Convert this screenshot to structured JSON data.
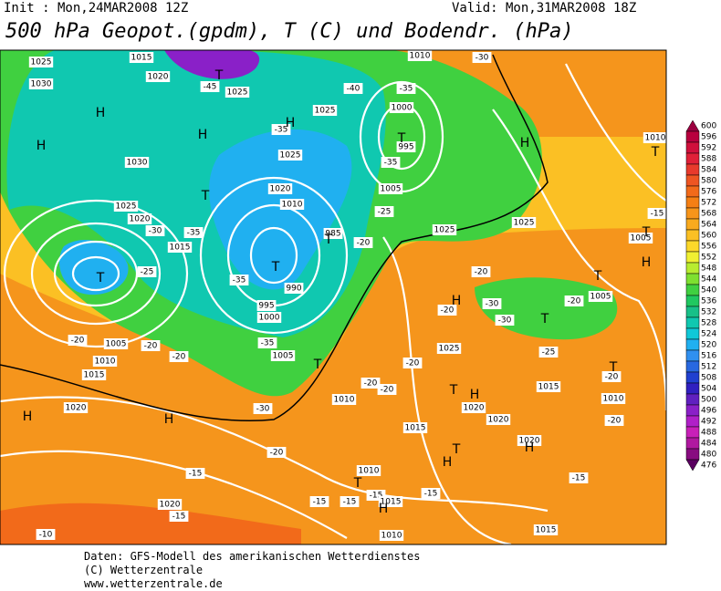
{
  "header": {
    "init": "Init : Mon,24MAR2008 12Z",
    "valid": "Valid: Mon,31MAR2008 18Z",
    "title": "500 hPa Geopot.(gpdm), T (C) und Bodendr. (hPa)"
  },
  "map": {
    "labels": [
      "1015",
      "1020",
      "1025",
      "1030",
      "1025",
      "1025",
      "-45",
      "-40",
      "-35",
      "1000",
      "-35",
      "995",
      "1025",
      "1030",
      "-35",
      "1005",
      "1020",
      "1025",
      "1020",
      "-30",
      "-35",
      "1015",
      "-25",
      "1010",
      "985",
      "-20",
      "-25",
      "990",
      "995",
      "1000",
      "-35",
      "-35",
      "1005",
      "-20",
      "1005",
      "-20",
      "-20",
      "1010",
      "1015",
      "1020",
      "-30",
      "-20",
      "-15",
      "1020",
      "-15",
      "-10",
      "1025",
      "1025",
      "-20",
      "-30",
      "-20",
      "-30",
      "-20",
      "1005",
      "1025",
      "-20",
      "-20",
      "-20",
      "1010",
      "1020",
      "1020",
      "1015",
      "1020",
      "1015",
      "-25",
      "-20",
      "1010",
      "-20",
      "-15",
      "1010",
      "-15",
      "-15",
      "-15",
      "1015",
      "-15",
      "1010",
      "1015",
      "-15",
      "1005",
      "1010",
      "-30",
      "1010"
    ],
    "letters": [
      "H",
      "H",
      "H",
      "H",
      "T",
      "T",
      "T",
      "T",
      "T",
      "T",
      "H",
      "T",
      "T",
      "H",
      "T",
      "H",
      "T",
      "H",
      "H",
      "T",
      "T",
      "H",
      "T",
      "H",
      "H",
      "T",
      "H",
      "T"
    ]
  },
  "colorbar": {
    "labels": [
      600,
      596,
      592,
      588,
      584,
      580,
      576,
      572,
      568,
      564,
      560,
      556,
      552,
      548,
      544,
      540,
      536,
      532,
      528,
      524,
      520,
      516,
      512,
      508,
      504,
      500,
      496,
      492,
      488,
      484,
      480,
      476
    ],
    "colors": [
      "#9b0040",
      "#b8003e",
      "#d0103c",
      "#e02038",
      "#e83a2c",
      "#ee5522",
      "#f26a1a",
      "#f57f14",
      "#f7951a",
      "#f9aa1e",
      "#fbc024",
      "#fcd82a",
      "#f0f032",
      "#b8ec30",
      "#7ee030",
      "#40d040",
      "#20c860",
      "#18c088",
      "#10c8b0",
      "#10c8d8",
      "#20b0f0",
      "#3090f0",
      "#2868e0",
      "#2040d0",
      "#3020c0",
      "#6020c0",
      "#8a20c8",
      "#b020c8",
      "#c820b8",
      "#b018a0",
      "#880c80",
      "#5a0060"
    ]
  },
  "footer": {
    "lines": [
      "Daten: GFS-Modell des amerikanischen Wetterdienstes",
      "(C) Wetterzentrale",
      "www.wetterzentrale.de"
    ]
  }
}
